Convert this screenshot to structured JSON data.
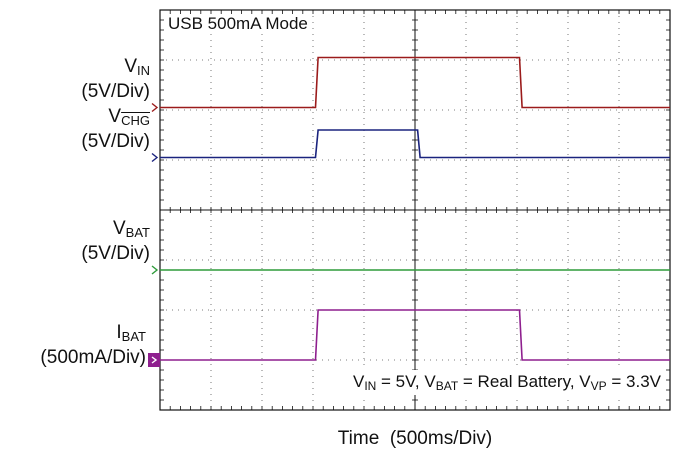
{
  "chart_data": {
    "type": "line",
    "title": "USB 500mA Mode",
    "xlabel": "Time",
    "xlabel_unit": "(500ms/Div)",
    "conditions": {
      "vin": {
        "main": "V",
        "sub": "IN",
        "rest": " = 5V, "
      },
      "vbat": {
        "main": "V",
        "sub": "BAT",
        "rest": " = Real Battery, "
      },
      "vvp": {
        "main": "V",
        "sub": "VP",
        "rest": " = 3.3V"
      }
    },
    "x_unit": "div",
    "xlim": [
      0,
      10
    ],
    "ylim_div": [
      0,
      8
    ],
    "grid": true,
    "series": [
      {
        "name": "VIN",
        "name_main": "V",
        "name_sub": "IN",
        "scale": "(5V/Div)",
        "overline": false,
        "color": "#9b1b1b",
        "marker_level": 6.05,
        "x": [
          0,
          3.05,
          3.1,
          7.05,
          7.1,
          10
        ],
        "y": [
          6.05,
          6.05,
          7.05,
          7.05,
          6.05,
          6.05
        ]
      },
      {
        "name": "VCHG",
        "name_main": "V",
        "name_sub": "CHG",
        "scale": "(5V/Div)",
        "overline": true,
        "color": "#1a237e",
        "marker_level": 5.05,
        "x": [
          0,
          3.05,
          3.1,
          5.05,
          5.1,
          10
        ],
        "y": [
          5.05,
          5.05,
          5.6,
          5.6,
          5.05,
          5.05
        ]
      },
      {
        "name": "VBAT",
        "name_main": "V",
        "name_sub": "BAT",
        "scale": "(5V/Div)",
        "overline": false,
        "color": "#2e9b3a",
        "marker_level": 2.8,
        "x": [
          0,
          10
        ],
        "y": [
          2.8,
          2.8
        ]
      },
      {
        "name": "IBAT",
        "name_main": "I",
        "name_sub": "BAT",
        "scale": "(500mA/Div)",
        "overline": false,
        "color": "#8e1f8e",
        "marker_level": 1.0,
        "x": [
          0,
          3.05,
          3.1,
          7.05,
          7.1,
          10
        ],
        "y": [
          1.0,
          1.0,
          2.0,
          2.0,
          1.0,
          1.0
        ]
      }
    ]
  }
}
